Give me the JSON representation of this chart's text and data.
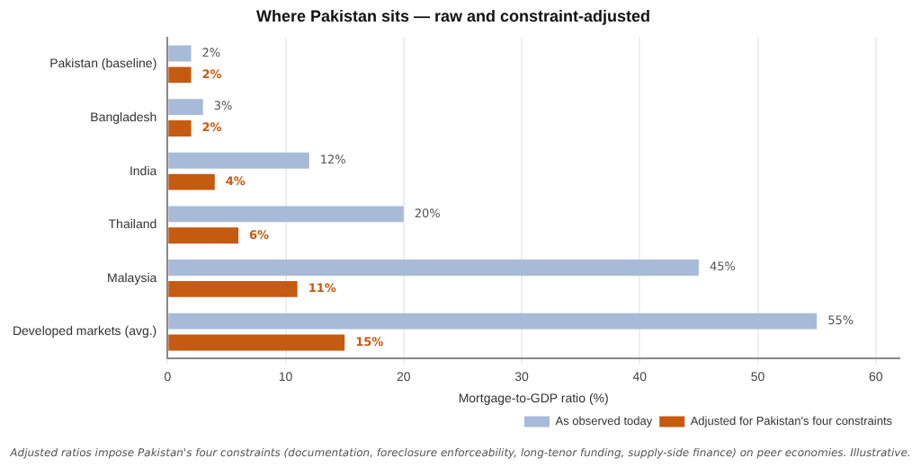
{
  "chart_data": {
    "type": "bar",
    "orientation": "horizontal",
    "title": "Where Pakistan sits — raw and constraint-adjusted",
    "xlabel": "Mortgage-to-GDP ratio (%)",
    "categories": [
      "Pakistan (baseline)",
      "Bangladesh",
      "India",
      "Thailand",
      "Malaysia",
      "Developed markets (avg.)"
    ],
    "series": [
      {
        "name": "As observed today",
        "color": "#a7bbd8",
        "values": [
          2,
          3,
          12,
          20,
          45,
          55
        ],
        "value_labels": [
          "2%",
          "3%",
          "12%",
          "20%",
          "45%",
          "55%"
        ]
      },
      {
        "name": "Adjusted for Pakistan's four constraints",
        "color": "#c55a11",
        "values": [
          2,
          2,
          4,
          6,
          11,
          15
        ],
        "value_labels": [
          "2%",
          "2%",
          "4%",
          "6%",
          "11%",
          "15%"
        ]
      }
    ],
    "xlim": [
      0,
      62
    ],
    "xticks": [
      0,
      10,
      20,
      30,
      40,
      50,
      60
    ],
    "grid": "x",
    "legend": "bottom right",
    "annotations": [
      "Adjusted ratios impose Pakistan's four constraints (documentation, foreclosure enforceability, long-tenor funding, supply-side finance) on peer economies. Illustrative."
    ]
  }
}
